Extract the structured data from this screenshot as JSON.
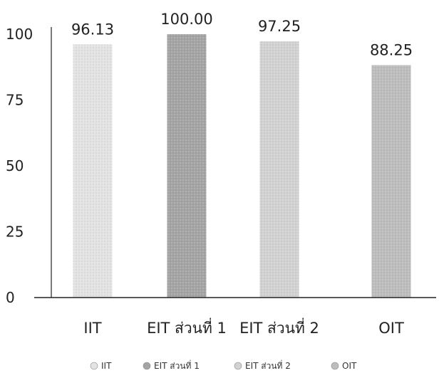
{
  "colors": {
    "IIT": "#e3e3e3",
    "EIT ส่วนที่ 1": "#a4a4a4",
    "EIT ส่วนที่ 2": "#d2d2d2",
    "OIT": "#bdbdbd",
    "axis": "#222222"
  },
  "chart_data": {
    "type": "bar",
    "categories": [
      "IIT",
      "EIT ส่วนที่ 1",
      "EIT ส่วนที่ 2",
      "OIT"
    ],
    "values": [
      96.13,
      100.0,
      97.25,
      88.25
    ],
    "value_labels": [
      "96.13",
      "100.00",
      "97.25",
      "88.25"
    ],
    "yticks": [
      "0",
      "25",
      "50",
      "75",
      "100"
    ],
    "ylim": [
      0,
      100
    ],
    "title": "",
    "xlabel": "",
    "ylabel": "",
    "grid": false,
    "legend": {
      "position": "bottom",
      "entries": [
        "IIT",
        "EIT ส่วนที่ 1",
        "EIT ส่วนที่ 2",
        "OIT"
      ]
    }
  }
}
